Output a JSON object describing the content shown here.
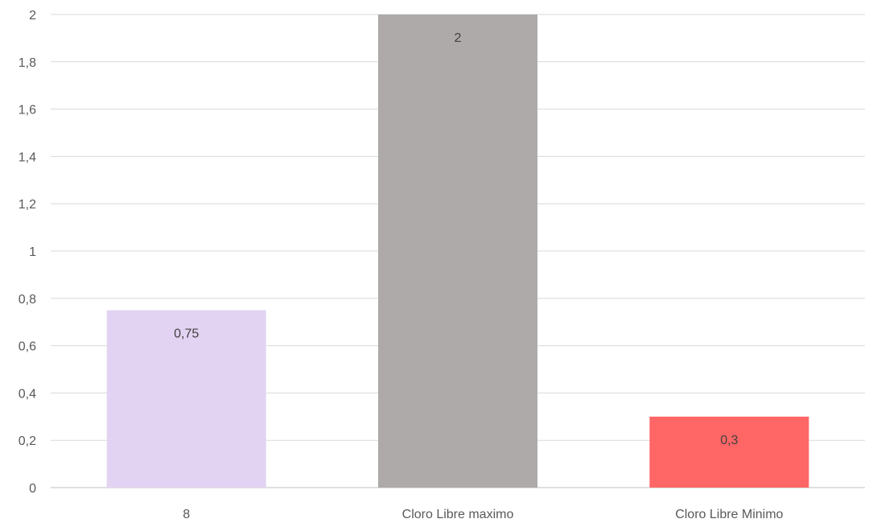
{
  "chart_data": {
    "type": "bar",
    "categories": [
      "8",
      "Cloro Libre maximo",
      "Cloro Libre Minimo"
    ],
    "values": [
      0.75,
      2,
      0.3
    ],
    "value_labels": [
      "0,75",
      "2",
      "0,3"
    ],
    "bar_colors": [
      "#e3d3f2",
      "#aeaaa9",
      "#ff6666"
    ],
    "ylim": [
      0,
      2
    ],
    "y_ticks": [
      0,
      0.2,
      0.4,
      0.6,
      0.8,
      1,
      1.2,
      1.4,
      1.6,
      1.8,
      2
    ],
    "y_tick_labels": [
      "0",
      "0,2",
      "0,4",
      "0,6",
      "0,8",
      "1",
      "1,2",
      "1,4",
      "1,6",
      "1,8",
      "2"
    ],
    "grid": true,
    "legend": "none"
  }
}
